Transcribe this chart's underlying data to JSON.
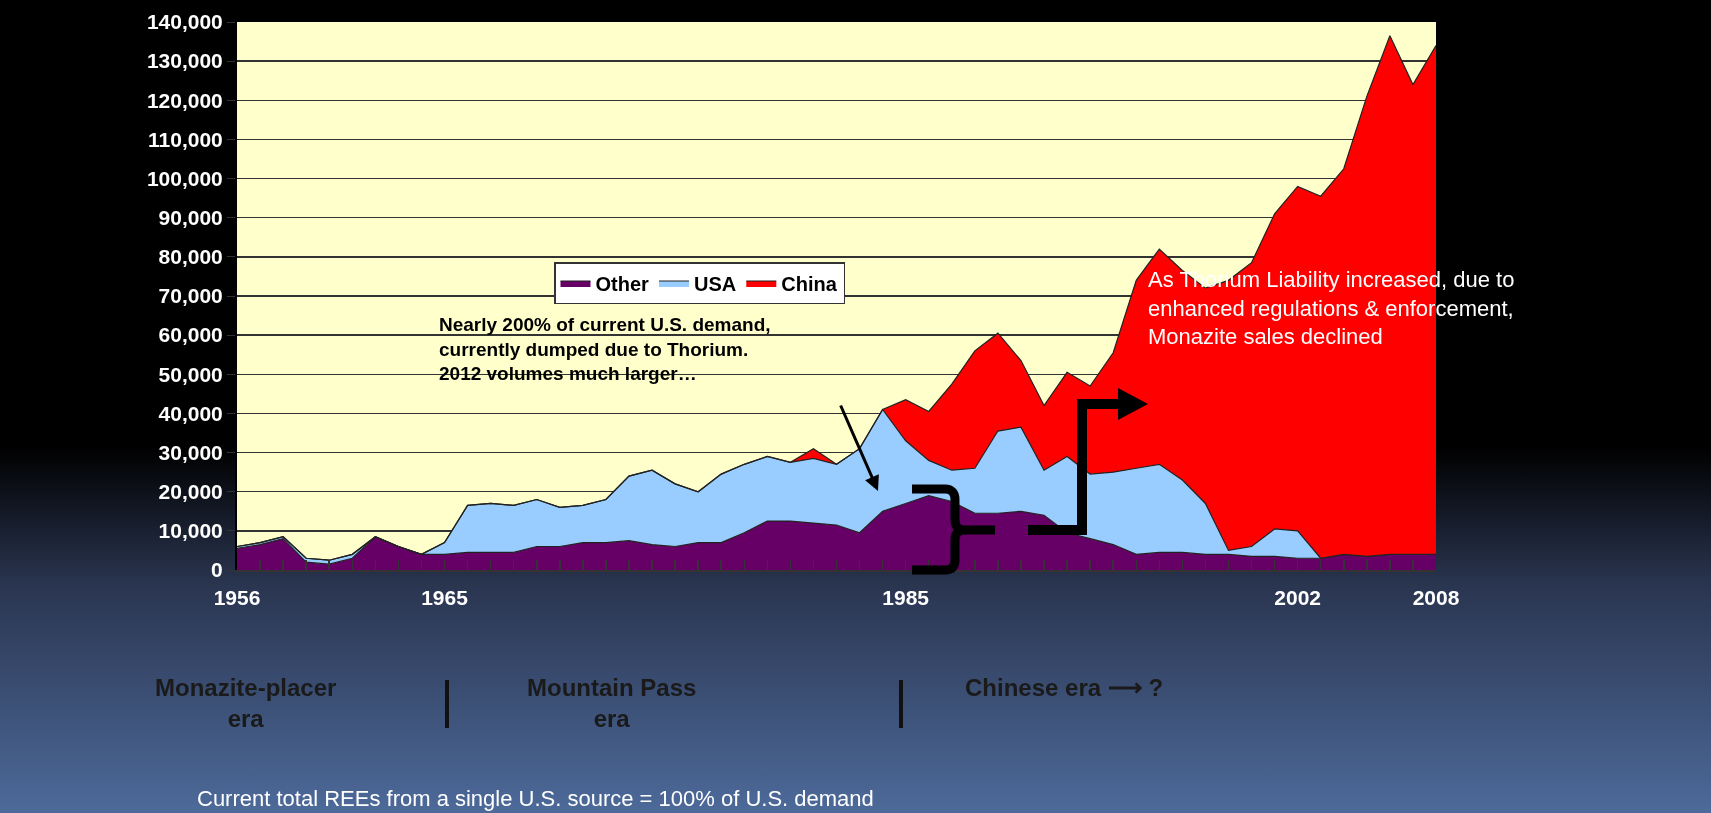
{
  "chart_data": {
    "type": "area",
    "stacked": true,
    "x": [
      1956,
      1957,
      1958,
      1959,
      1960,
      1961,
      1962,
      1963,
      1964,
      1965,
      1966,
      1967,
      1968,
      1969,
      1970,
      1971,
      1972,
      1973,
      1974,
      1975,
      1976,
      1977,
      1978,
      1979,
      1980,
      1981,
      1982,
      1983,
      1984,
      1985,
      1986,
      1987,
      1988,
      1989,
      1990,
      1991,
      1992,
      1993,
      1994,
      1995,
      1996,
      1997,
      1998,
      1999,
      2000,
      2001,
      2002,
      2003,
      2004,
      2005,
      2006,
      2007,
      2008
    ],
    "series": [
      {
        "name": "Other",
        "color": "#660066",
        "values": [
          5500,
          6500,
          8000,
          2000,
          1500,
          3000,
          8500,
          6000,
          4000,
          4000,
          4500,
          4500,
          4500,
          6000,
          6000,
          7000,
          7000,
          7500,
          6500,
          6000,
          7000,
          7000,
          9500,
          12500,
          12500,
          12000,
          11500,
          9500,
          15000,
          17000,
          19000,
          17500,
          14500,
          14500,
          15000,
          14000,
          9500,
          8000,
          6500,
          4000,
          4500,
          4500,
          4000,
          4000,
          3500,
          3500,
          3000,
          3000,
          4000,
          3500,
          4000,
          4000,
          4000
        ]
      },
      {
        "name": "USA",
        "color": "#99ccff",
        "values": [
          500,
          500,
          500,
          1000,
          1000,
          1000,
          0,
          0,
          0,
          3000,
          12000,
          12500,
          12000,
          12000,
          10000,
          9500,
          11000,
          16500,
          19000,
          16000,
          13000,
          17500,
          17500,
          16500,
          15000,
          16500,
          15500,
          21500,
          26000,
          16000,
          9000,
          8000,
          11500,
          21000,
          21500,
          11500,
          19500,
          16500,
          18500,
          22000,
          22500,
          18500,
          13000,
          1000,
          2500,
          7000,
          7000,
          0,
          0,
          0,
          0,
          0,
          0
        ]
      },
      {
        "name": "China",
        "color": "#ff0000",
        "values": [
          0,
          0,
          0,
          0,
          0,
          0,
          0,
          0,
          0,
          0,
          0,
          0,
          0,
          0,
          0,
          0,
          0,
          0,
          0,
          0,
          0,
          0,
          0,
          0,
          0,
          2500,
          0,
          0,
          0,
          10500,
          12500,
          22000,
          30000,
          25000,
          17000,
          16500,
          21500,
          22500,
          30500,
          48000,
          55000,
          53500,
          55000,
          69000,
          72500,
          80500,
          88000,
          92500,
          98500,
          117500,
          132500,
          120000,
          130000
        ]
      }
    ],
    "xlim": [
      1956,
      2008
    ],
    "xticks": [
      1956,
      {
        "value": 1957,
        "label": null
      },
      {
        "value": 1958,
        "label": null
      },
      {
        "value": 1959,
        "label": null
      },
      {
        "value": 1960,
        "label": null
      },
      {
        "value": 1961,
        "label": null
      },
      {
        "value": 1962,
        "label": null
      },
      {
        "value": 1963,
        "label": null
      },
      {
        "value": 1964,
        "label": null
      },
      1965,
      {
        "value": 1966,
        "label": null
      },
      {
        "value": 1967,
        "label": null
      },
      {
        "value": 1968,
        "label": null
      },
      {
        "value": 1969,
        "label": null
      },
      {
        "value": 1970,
        "label": null
      },
      {
        "value": 1971,
        "label": null
      },
      {
        "value": 1972,
        "label": null
      },
      {
        "value": 1973,
        "label": null
      },
      {
        "value": 1974,
        "label": null
      },
      {
        "value": 1975,
        "label": null
      },
      {
        "value": 1976,
        "label": null
      },
      {
        "value": 1977,
        "label": null
      },
      {
        "value": 1978,
        "label": null
      },
      {
        "value": 1979,
        "label": null
      },
      {
        "value": 1980,
        "label": null
      },
      {
        "value": 1981,
        "label": null
      },
      {
        "value": 1982,
        "label": null
      },
      {
        "value": 1983,
        "label": null
      },
      {
        "value": 1984,
        "label": null
      },
      1985,
      {
        "value": 1986,
        "label": null
      },
      {
        "value": 1987,
        "label": null
      },
      {
        "value": 1988,
        "label": null
      },
      {
        "value": 1989,
        "label": null
      },
      {
        "value": 1990,
        "label": null
      },
      {
        "value": 1991,
        "label": null
      },
      {
        "value": 1992,
        "label": null
      },
      {
        "value": 1993,
        "label": null
      },
      {
        "value": 1994,
        "label": null
      },
      {
        "value": 1995,
        "label": null
      },
      {
        "value": 1996,
        "label": null
      },
      {
        "value": 1997,
        "label": null
      },
      {
        "value": 1998,
        "label": null
      },
      {
        "value": 1999,
        "label": null
      },
      {
        "value": 2000,
        "label": null
      },
      {
        "value": 2001,
        "label": null
      },
      2002,
      {
        "value": 2003,
        "label": null
      },
      {
        "value": 2004,
        "label": null
      },
      {
        "value": 2005,
        "label": null
      },
      {
        "value": 2006,
        "label": null
      },
      {
        "value": 2007,
        "label": null
      },
      2008
    ],
    "ylim": [
      0,
      140000
    ],
    "yticks": [
      {
        "value": 0,
        "label": "0"
      },
      {
        "value": 10000,
        "label": "10,000"
      },
      {
        "value": 20000,
        "label": "20,000"
      },
      {
        "value": 30000,
        "label": "30,000"
      },
      {
        "value": 40000,
        "label": "40,000"
      },
      {
        "value": 50000,
        "label": "50,000"
      },
      {
        "value": 60000,
        "label": "60,000"
      },
      {
        "value": 70000,
        "label": "70,000"
      },
      {
        "value": 80000,
        "label": "80,000"
      },
      {
        "value": 90000,
        "label": "90,000"
      },
      {
        "value": 100000,
        "label": "100,000"
      },
      {
        "value": 110000,
        "label": "110,000"
      },
      {
        "value": 120000,
        "label": "120,000"
      },
      {
        "value": 130000,
        "label": "130,000"
      },
      {
        "value": 140000,
        "label": "140,000"
      }
    ],
    "grid": "y",
    "legend": "top",
    "marker": "none",
    "annotations": [
      "Nearly 200% of current U.S. demand,\ncurrently dumped due to Thorium.\n2012 volumes much larger…",
      "As Thorium Liability increased, due to\nenhanced regulations & enforcement,\nMonazite sales declined",
      "Monazite-placer\nera",
      "Mountain Pass\nera",
      "Chinese era ⟶ ?",
      "Current total REEs from a single U.S. source = 100% of U.S. demand"
    ]
  }
}
